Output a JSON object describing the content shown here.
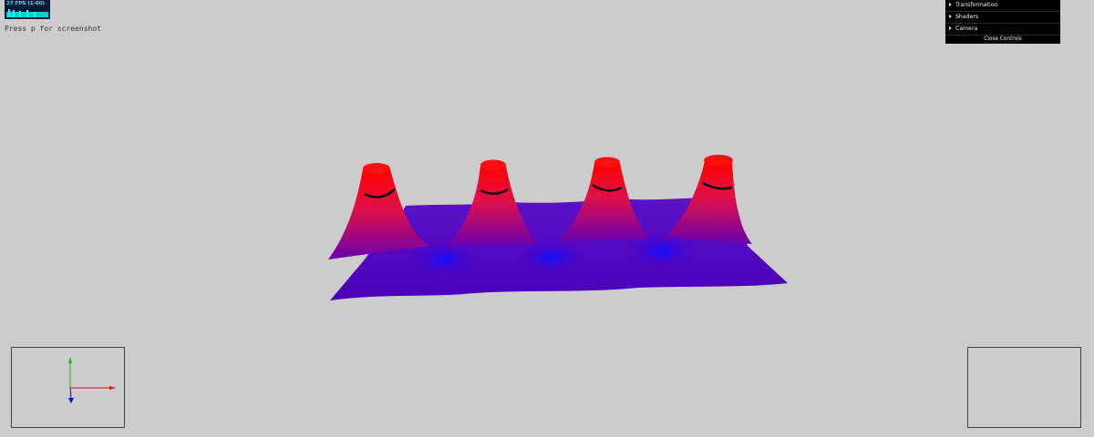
{
  "stats": {
    "fps_text": "27 FPS (1-60)"
  },
  "hint": "Press p for screenshot",
  "controls": {
    "folders": [
      {
        "label": "Transformation"
      },
      {
        "label": "Shaders"
      },
      {
        "label": "Camera"
      }
    ],
    "close_label": "Close Controls"
  },
  "colors": {
    "background": "#cccccc",
    "surface_low": "#1010ff",
    "surface_mid": "#6a00b0",
    "surface_high": "#ff0000",
    "contour": "#111111",
    "axis_x": "#ff0000",
    "axis_y": "#00cc00",
    "axis_z": "#0000ff"
  }
}
